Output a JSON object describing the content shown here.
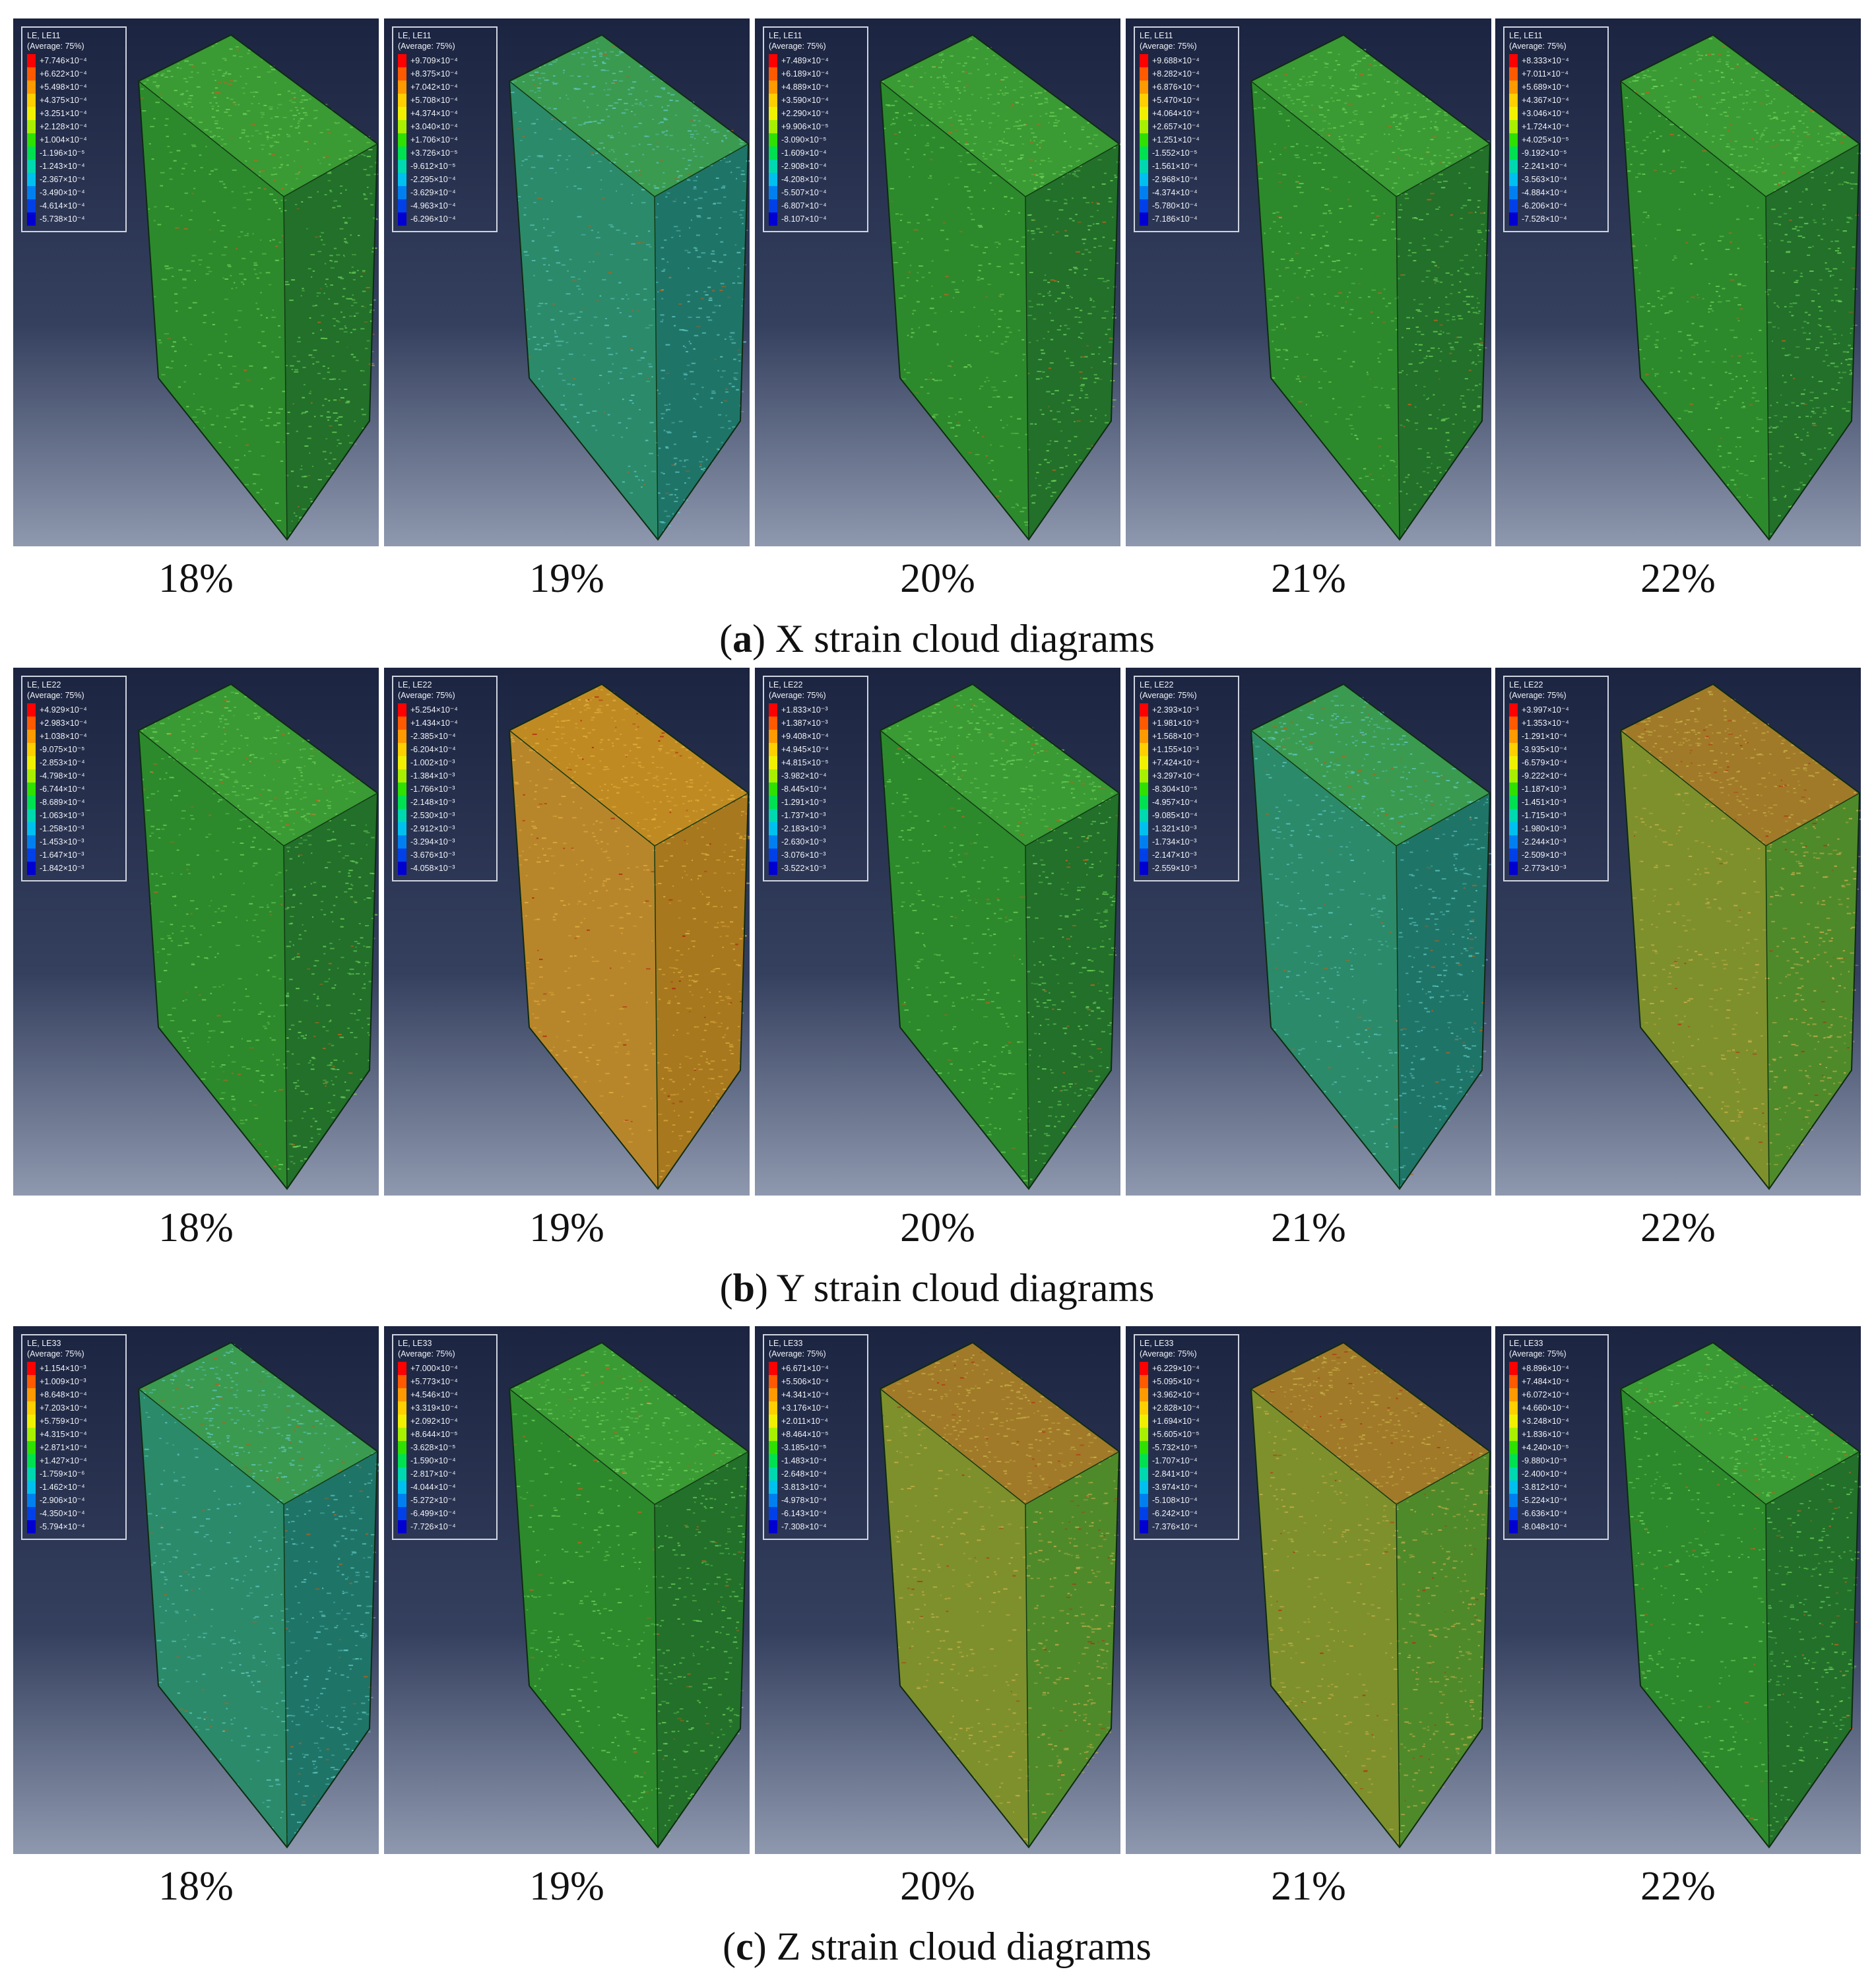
{
  "colors": {
    "legend_scale": [
      "#ff0000",
      "#ff5a00",
      "#ff9a00",
      "#ffcf00",
      "#f0f000",
      "#a8f000",
      "#2fe000",
      "#00e050",
      "#00d8b0",
      "#00c0f0",
      "#0080f0",
      "#0040e8",
      "#0000d0"
    ],
    "mesh_green": "#2f8f2f",
    "mesh_orange": "#c98a1e",
    "mesh_blue": "#2a8a9a"
  },
  "rows": [
    {
      "caption_letter": "a",
      "caption_text": ") X strain cloud diagrams",
      "caption_open": "(",
      "panels": [
        {
          "label": "18%",
          "variable": "LE, LE11",
          "average": "(Average: 75%)",
          "dominant": "green",
          "values": [
            "+7.746×10⁻⁴",
            "+6.622×10⁻⁴",
            "+5.498×10⁻⁴",
            "+4.375×10⁻⁴",
            "+3.251×10⁻⁴",
            "+2.128×10⁻⁴",
            "+1.004×10⁻⁴",
            "-1.196×10⁻⁵",
            "-1.243×10⁻⁴",
            "-2.367×10⁻⁴",
            "-3.490×10⁻⁴",
            "-4.614×10⁻⁴",
            "-5.738×10⁻⁴"
          ]
        },
        {
          "label": "19%",
          "variable": "LE, LE11",
          "average": "(Average: 75%)",
          "dominant": "teal",
          "values": [
            "+9.709×10⁻⁴",
            "+8.375×10⁻⁴",
            "+7.042×10⁻⁴",
            "+5.708×10⁻⁴",
            "+4.374×10⁻⁴",
            "+3.040×10⁻⁴",
            "+1.706×10⁻⁴",
            "+3.726×10⁻⁵",
            "-9.612×10⁻⁵",
            "-2.295×10⁻⁴",
            "-3.629×10⁻⁴",
            "-4.963×10⁻⁴",
            "-6.296×10⁻⁴"
          ]
        },
        {
          "label": "20%",
          "variable": "LE, LE11",
          "average": "(Average: 75%)",
          "dominant": "green",
          "values": [
            "+7.489×10⁻⁴",
            "+6.189×10⁻⁴",
            "+4.889×10⁻⁴",
            "+3.590×10⁻⁴",
            "+2.290×10⁻⁴",
            "+9.906×10⁻⁵",
            "-3.090×10⁻⁵",
            "-1.609×10⁻⁴",
            "-2.908×10⁻⁴",
            "-4.208×10⁻⁴",
            "-5.507×10⁻⁴",
            "-6.807×10⁻⁴",
            "-8.107×10⁻⁴"
          ]
        },
        {
          "label": "21%",
          "variable": "LE, LE11",
          "average": "(Average: 75%)",
          "dominant": "green",
          "values": [
            "+9.688×10⁻⁴",
            "+8.282×10⁻⁴",
            "+6.876×10⁻⁴",
            "+5.470×10⁻⁴",
            "+4.064×10⁻⁴",
            "+2.657×10⁻⁴",
            "+1.251×10⁻⁴",
            "-1.552×10⁻⁵",
            "-1.561×10⁻⁴",
            "-2.968×10⁻⁴",
            "-4.374×10⁻⁴",
            "-5.780×10⁻⁴",
            "-7.186×10⁻⁴"
          ]
        },
        {
          "label": "22%",
          "variable": "LE, LE11",
          "average": "(Average: 75%)",
          "dominant": "green",
          "values": [
            "+8.333×10⁻⁴",
            "+7.011×10⁻⁴",
            "+5.689×10⁻⁴",
            "+4.367×10⁻⁴",
            "+3.046×10⁻⁴",
            "+1.724×10⁻⁴",
            "+4.025×10⁻⁵",
            "-9.192×10⁻⁵",
            "-2.241×10⁻⁴",
            "-3.563×10⁻⁴",
            "-4.884×10⁻⁴",
            "-6.206×10⁻⁴",
            "-7.528×10⁻⁴"
          ]
        }
      ]
    },
    {
      "caption_letter": "b",
      "caption_text": ") Y strain cloud diagrams",
      "caption_open": "(",
      "panels": [
        {
          "label": "18%",
          "variable": "LE, LE22",
          "average": "(Average: 75%)",
          "dominant": "green",
          "values": [
            "+4.929×10⁻⁴",
            "+2.983×10⁻⁴",
            "+1.038×10⁻⁴",
            "-9.075×10⁻⁵",
            "-2.853×10⁻⁴",
            "-4.798×10⁻⁴",
            "-6.744×10⁻⁴",
            "-8.689×10⁻⁴",
            "-1.063×10⁻³",
            "-1.258×10⁻³",
            "-1.453×10⁻³",
            "-1.647×10⁻³",
            "-1.842×10⁻³"
          ]
        },
        {
          "label": "19%",
          "variable": "LE, LE22",
          "average": "(Average: 75%)",
          "dominant": "orange",
          "values": [
            "+5.254×10⁻⁴",
            "+1.434×10⁻⁴",
            "-2.385×10⁻⁴",
            "-6.204×10⁻⁴",
            "-1.002×10⁻³",
            "-1.384×10⁻³",
            "-1.766×10⁻³",
            "-2.148×10⁻³",
            "-2.530×10⁻³",
            "-2.912×10⁻³",
            "-3.294×10⁻³",
            "-3.676×10⁻³",
            "-4.058×10⁻³"
          ]
        },
        {
          "label": "20%",
          "variable": "LE, LE22",
          "average": "(Average: 75%)",
          "dominant": "green",
          "values": [
            "+1.833×10⁻³",
            "+1.387×10⁻³",
            "+9.408×10⁻⁴",
            "+4.945×10⁻⁴",
            "+4.815×10⁻⁵",
            "-3.982×10⁻⁴",
            "-8.445×10⁻⁴",
            "-1.291×10⁻³",
            "-1.737×10⁻³",
            "-2.183×10⁻³",
            "-2.630×10⁻³",
            "-3.076×10⁻³",
            "-3.522×10⁻³"
          ]
        },
        {
          "label": "21%",
          "variable": "LE, LE22",
          "average": "(Average: 75%)",
          "dominant": "teal",
          "values": [
            "+2.393×10⁻³",
            "+1.981×10⁻³",
            "+1.568×10⁻³",
            "+1.155×10⁻³",
            "+7.424×10⁻⁴",
            "+3.297×10⁻⁴",
            "-8.304×10⁻⁵",
            "-4.957×10⁻⁴",
            "-9.085×10⁻⁴",
            "-1.321×10⁻³",
            "-1.734×10⁻³",
            "-2.147×10⁻³",
            "-2.559×10⁻³"
          ]
        },
        {
          "label": "22%",
          "variable": "LE, LE22",
          "average": "(Average: 75%)",
          "dominant": "olive",
          "values": [
            "+3.997×10⁻⁴",
            "+1.353×10⁻⁴",
            "-1.291×10⁻⁴",
            "-3.935×10⁻⁴",
            "-6.579×10⁻⁴",
            "-9.222×10⁻⁴",
            "-1.187×10⁻³",
            "-1.451×10⁻³",
            "-1.715×10⁻³",
            "-1.980×10⁻³",
            "-2.244×10⁻³",
            "-2.509×10⁻³",
            "-2.773×10⁻³"
          ]
        }
      ]
    },
    {
      "caption_letter": "c",
      "caption_text": ") Z strain cloud diagrams",
      "caption_open": "(",
      "panels": [
        {
          "label": "18%",
          "variable": "LE, LE33",
          "average": "(Average: 75%)",
          "dominant": "teal",
          "values": [
            "+1.154×10⁻³",
            "+1.009×10⁻³",
            "+8.648×10⁻⁴",
            "+7.203×10⁻⁴",
            "+5.759×10⁻⁴",
            "+4.315×10⁻⁴",
            "+2.871×10⁻⁴",
            "+1.427×10⁻⁴",
            "-1.759×10⁻⁶",
            "-1.462×10⁻⁴",
            "-2.906×10⁻⁴",
            "-4.350×10⁻⁴",
            "-5.794×10⁻⁴"
          ]
        },
        {
          "label": "19%",
          "variable": "LE, LE33",
          "average": "(Average: 75%)",
          "dominant": "green",
          "values": [
            "+7.000×10⁻⁴",
            "+5.773×10⁻⁴",
            "+4.546×10⁻⁴",
            "+3.319×10⁻⁴",
            "+2.092×10⁻⁴",
            "+8.644×10⁻⁵",
            "-3.628×10⁻⁵",
            "-1.590×10⁻⁴",
            "-2.817×10⁻⁴",
            "-4.044×10⁻⁴",
            "-5.272×10⁻⁴",
            "-6.499×10⁻⁴",
            "-7.726×10⁻⁴"
          ]
        },
        {
          "label": "20%",
          "variable": "LE, LE33",
          "average": "(Average: 75%)",
          "dominant": "olive",
          "values": [
            "+6.671×10⁻⁴",
            "+5.506×10⁻⁴",
            "+4.341×10⁻⁴",
            "+3.176×10⁻⁴",
            "+2.011×10⁻⁴",
            "+8.464×10⁻⁵",
            "-3.185×10⁻⁵",
            "-1.483×10⁻⁴",
            "-2.648×10⁻⁴",
            "-3.813×10⁻⁴",
            "-4.978×10⁻⁴",
            "-6.143×10⁻⁴",
            "-7.308×10⁻⁴"
          ]
        },
        {
          "label": "21%",
          "variable": "LE, LE33",
          "average": "(Average: 75%)",
          "dominant": "olive",
          "values": [
            "+6.229×10⁻⁴",
            "+5.095×10⁻⁴",
            "+3.962×10⁻⁴",
            "+2.828×10⁻⁴",
            "+1.694×10⁻⁴",
            "+5.605×10⁻⁵",
            "-5.732×10⁻⁵",
            "-1.707×10⁻⁴",
            "-2.841×10⁻⁴",
            "-3.974×10⁻⁴",
            "-5.108×10⁻⁴",
            "-6.242×10⁻⁴",
            "-7.376×10⁻⁴"
          ]
        },
        {
          "label": "22%",
          "variable": "LE, LE33",
          "average": "(Average: 75%)",
          "dominant": "green",
          "values": [
            "+8.896×10⁻⁴",
            "+7.484×10⁻⁴",
            "+6.072×10⁻⁴",
            "+4.660×10⁻⁴",
            "+3.248×10⁻⁴",
            "+1.836×10⁻⁴",
            "+4.240×10⁻⁵",
            "-9.880×10⁻⁵",
            "-2.400×10⁻⁴",
            "-3.812×10⁻⁴",
            "-5.224×10⁻⁴",
            "-6.636×10⁻⁴",
            "-8.048×10⁻⁴"
          ]
        }
      ]
    }
  ]
}
